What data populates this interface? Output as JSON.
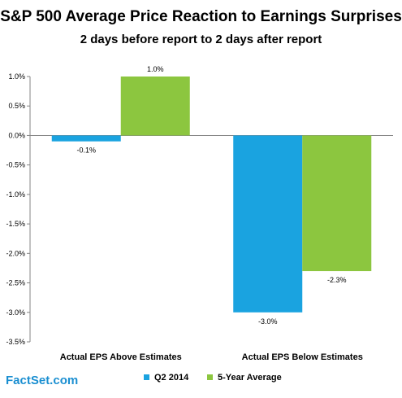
{
  "chart_data": {
    "type": "bar",
    "title": "S&P 500 Average Price Reaction to Earnings Surprises",
    "subtitle": "2 days before report to 2 days after report",
    "categories": [
      "Actual EPS Above Estimates",
      "Actual EPS Below Estimates"
    ],
    "series": [
      {
        "name": "Q2 2014",
        "values": [
          -0.1,
          -3.0
        ],
        "labels": [
          "-0.1%",
          "-3.0%"
        ],
        "color": "#1aa3e0"
      },
      {
        "name": "5-Year Average",
        "values": [
          1.0,
          -2.3
        ],
        "labels": [
          "1.0%",
          "-2.3%"
        ],
        "color": "#8cc63f"
      }
    ],
    "ylim": [
      -3.5,
      1.0
    ],
    "yticks": [
      1.0,
      0.5,
      0.0,
      -0.5,
      -1.0,
      -1.5,
      -2.0,
      -2.5,
      -3.0,
      -3.5
    ],
    "ytick_labels": [
      "1.0%",
      "0.5%",
      "0.0%",
      "-0.5%",
      "-1.0%",
      "-1.5%",
      "-2.0%",
      "-2.5%",
      "-3.0%",
      "-3.5%"
    ],
    "xlabel": "",
    "ylabel": "",
    "grid": false,
    "legend_position": "bottom"
  },
  "source": "FactSet.com"
}
